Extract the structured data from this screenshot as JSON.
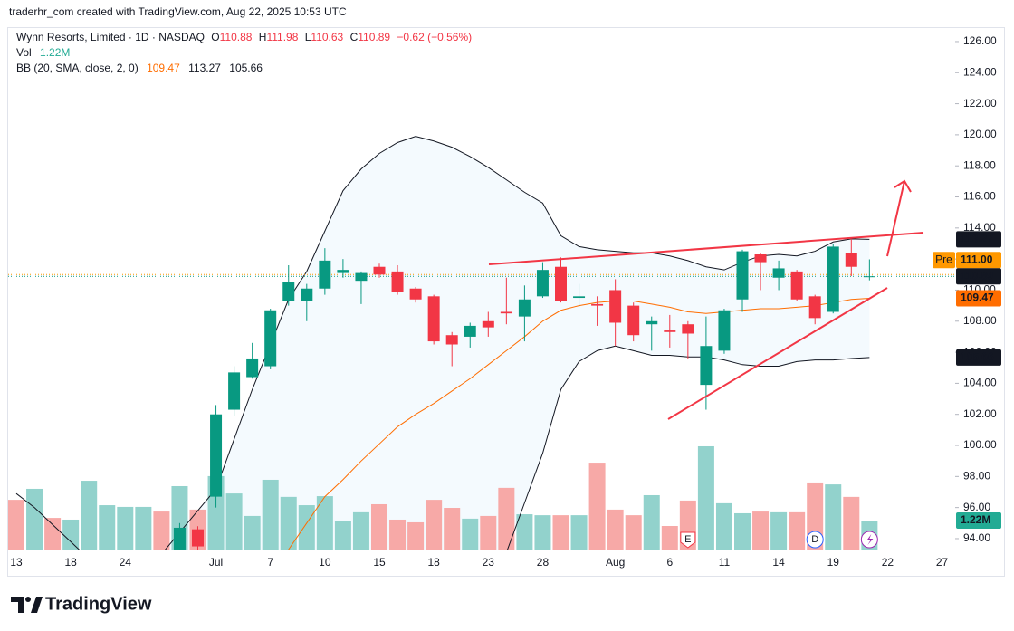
{
  "header": {
    "credit": "traderhr_com created with TradingView.com, Aug 22, 2025 10:53 UTC",
    "symbol": "Wynn Resorts, Limited · 1D · NASDAQ",
    "ohlc_labels": [
      "O",
      "H",
      "L",
      "C"
    ],
    "change": "−0.62 (−0.56%)",
    "volume_label": "Vol",
    "indicator": "BB (20, SMA, close, 2, 0)",
    "brand": "TradingView"
  },
  "chart_data": {
    "type": "candlestick",
    "categories": [
      "13",
      null,
      null,
      "18",
      null,
      null,
      "24",
      null,
      null,
      null,
      null,
      "Jul",
      null,
      null,
      "7",
      null,
      null,
      "10",
      null,
      null,
      "15",
      null,
      null,
      "18",
      null,
      null,
      "23",
      null,
      null,
      "28",
      null,
      null,
      null,
      "Aug",
      null,
      null,
      "6",
      null,
      null,
      "11",
      null,
      null,
      "14",
      null,
      null,
      "19",
      null,
      null,
      "22",
      null,
      null,
      "27"
    ],
    "open": [
      null,
      null,
      null,
      null,
      null,
      null,
      null,
      null,
      null,
      93.3,
      94.6,
      96.7,
      102.3,
      104.4,
      105.1,
      109.3,
      109.3,
      110.1,
      111.1,
      110.6,
      111.5,
      111.2,
      110.1,
      109.6,
      107.1,
      107.0,
      108.0,
      108.6,
      108.3,
      109.6,
      111.5,
      109.5,
      109.1,
      110.0,
      109.0,
      107.8,
      107.4,
      107.8,
      103.9,
      106.1,
      109.4,
      112.3,
      110.8,
      111.2,
      109.6,
      108.6,
      112.4,
      110.88,
      null,
      null,
      null,
      null
    ],
    "high": [
      null,
      null,
      null,
      null,
      null,
      null,
      null,
      null,
      null,
      95.0,
      94.8,
      102.6,
      105.1,
      106.6,
      108.8,
      111.6,
      110.4,
      112.7,
      112.0,
      111.2,
      111.7,
      111.6,
      110.2,
      109.7,
      107.3,
      107.9,
      108.6,
      110.8,
      110.3,
      111.8,
      112.1,
      110.4,
      109.6,
      110.7,
      109.2,
      108.3,
      108.4,
      108.0,
      108.3,
      108.8,
      112.6,
      112.4,
      111.9,
      111.3,
      109.7,
      113.0,
      113.3,
      111.98,
      null,
      null,
      null,
      null
    ],
    "low": [
      null,
      null,
      null,
      null,
      null,
      null,
      null,
      null,
      null,
      93.0,
      93.3,
      96.0,
      101.9,
      104.3,
      104.9,
      109.0,
      108.0,
      109.7,
      110.8,
      109.1,
      110.8,
      109.7,
      109.2,
      106.5,
      105.1,
      106.3,
      107.0,
      107.8,
      106.7,
      109.5,
      109.2,
      108.9,
      107.7,
      106.4,
      106.7,
      106.1,
      106.3,
      105.6,
      102.3,
      105.9,
      108.6,
      110.0,
      110.0,
      109.3,
      107.8,
      108.5,
      110.9,
      110.63,
      null,
      null,
      null,
      null
    ],
    "close": [
      null,
      null,
      null,
      null,
      null,
      null,
      null,
      null,
      null,
      94.7,
      93.5,
      102.0,
      104.7,
      105.6,
      108.7,
      110.5,
      110.1,
      111.9,
      111.3,
      111.1,
      111.0,
      109.9,
      109.4,
      106.7,
      106.5,
      107.7,
      107.6,
      108.5,
      109.4,
      111.3,
      109.3,
      109.6,
      109.0,
      107.9,
      107.1,
      108.0,
      107.3,
      107.2,
      106.4,
      108.7,
      112.5,
      111.8,
      111.4,
      109.4,
      108.2,
      112.8,
      111.5,
      110.89,
      null,
      null,
      null,
      null
    ],
    "up_color": "#089981",
    "down_color": "#f23645",
    "volume": {
      "values": [
        2.07,
        2.52,
        1.33,
        1.26,
        2.85,
        1.85,
        1.78,
        1.78,
        1.59,
        2.63,
        1.67,
        3.04,
        2.33,
        1.41,
        2.89,
        2.19,
        1.85,
        2.22,
        1.22,
        1.56,
        1.89,
        1.26,
        1.15,
        2.07,
        1.74,
        1.3,
        1.41,
        2.56,
        1.48,
        1.44,
        1.44,
        1.44,
        3.59,
        1.67,
        1.44,
        2.26,
        1.0,
        2.04,
        4.26,
        1.93,
        1.52,
        1.59,
        1.56,
        1.56,
        2.78,
        2.7,
        2.19,
        1.22,
        null,
        null,
        null,
        null
      ],
      "value_labels": [
        null,
        null,
        null,
        null,
        null,
        null,
        null,
        null,
        null,
        null,
        null,
        null,
        null,
        null,
        null,
        null,
        null,
        null,
        null,
        null,
        null,
        null,
        null,
        null,
        null,
        null,
        null,
        null,
        null,
        null,
        null,
        null,
        null,
        null,
        null,
        null,
        null,
        null,
        null,
        null,
        null,
        null,
        null,
        null,
        null,
        null,
        null,
        "1.22M",
        null,
        null,
        null,
        null
      ],
      "colors": [
        "#f7a9a7",
        "#92d2cc",
        "#f7a9a7",
        "#92d2cc",
        "#92d2cc",
        "#92d2cc",
        "#92d2cc",
        "#92d2cc",
        "#f7a9a7",
        "#92d2cc",
        "#f7a9a7",
        "#92d2cc",
        "#92d2cc",
        "#92d2cc",
        "#92d2cc",
        "#92d2cc",
        "#92d2cc",
        "#92d2cc",
        "#92d2cc",
        "#92d2cc",
        "#f7a9a7",
        "#f7a9a7",
        "#f7a9a7",
        "#f7a9a7",
        "#f7a9a7",
        "#92d2cc",
        "#f7a9a7",
        "#f7a9a7",
        "#92d2cc",
        "#92d2cc",
        "#f7a9a7",
        "#92d2cc",
        "#f7a9a7",
        "#f7a9a7",
        "#f7a9a7",
        "#92d2cc",
        "#f7a9a7",
        "#f7a9a7",
        "#92d2cc",
        "#92d2cc",
        "#92d2cc",
        "#f7a9a7",
        "#92d2cc",
        "#f7a9a7",
        "#f7a9a7",
        "#92d2cc",
        "#f7a9a7",
        "#92d2cc",
        null,
        null,
        null,
        null
      ],
      "tag_color": "#22ab94"
    },
    "bb": {
      "basis": {
        "color": "#ff6d00",
        "values": [
          null,
          null,
          null,
          null,
          null,
          null,
          null,
          null,
          null,
          null,
          null,
          null,
          null,
          null,
          91.5,
          93.3,
          95.0,
          96.7,
          97.8,
          99.0,
          100.1,
          101.2,
          102.0,
          102.7,
          103.5,
          104.3,
          105.2,
          106.1,
          107.0,
          108.0,
          108.7,
          109.0,
          109.2,
          109.3,
          109.3,
          109.1,
          108.9,
          108.6,
          108.5,
          108.6,
          108.7,
          108.8,
          108.8,
          108.9,
          109.0,
          109.2,
          109.4,
          109.47,
          null,
          null,
          null,
          null
        ]
      },
      "upper": {
        "color": "#131722",
        "values": [
          null,
          null,
          null,
          null,
          null,
          null,
          null,
          91.6,
          93.0,
          94.4,
          95.8,
          97.2,
          100.4,
          103.6,
          106.5,
          109.4,
          111.2,
          113.8,
          116.4,
          117.8,
          118.8,
          119.5,
          119.9,
          119.6,
          119.2,
          118.6,
          117.9,
          117.1,
          116.3,
          115.6,
          113.5,
          112.8,
          112.6,
          112.5,
          112.4,
          112.4,
          112.2,
          111.9,
          111.5,
          111.3,
          111.8,
          112.2,
          112.3,
          112.2,
          112.5,
          113.1,
          113.3,
          113.27,
          null,
          null,
          null,
          null
        ]
      },
      "lower": {
        "color": "#131722",
        "values": [
          96.9,
          96.0,
          94.9,
          93.8,
          92.7,
          null,
          null,
          null,
          null,
          null,
          null,
          null,
          null,
          null,
          null,
          null,
          null,
          null,
          null,
          null,
          null,
          null,
          null,
          null,
          null,
          null,
          90.5,
          93.1,
          96.3,
          99.5,
          103.6,
          105.4,
          106.1,
          106.4,
          106.1,
          105.8,
          105.8,
          105.7,
          105.7,
          105.5,
          105.2,
          105.1,
          105.1,
          105.4,
          105.5,
          105.5,
          105.6,
          105.66,
          null,
          null,
          null,
          null
        ]
      },
      "fill": "rgba(33,150,243,0.05)"
    },
    "premarket": {
      "label": "Pre",
      "value": 111.0,
      "value_label": "111.00",
      "color": "#ff9800"
    },
    "events": [
      {
        "label": "E",
        "color": "#f23645"
      },
      {
        "label": "D",
        "color": "#2962ff"
      }
    ],
    "ylim": [
      93.24,
      126.93
    ],
    "yticks": [
      {
        "value": 94,
        "label": "94.00"
      },
      {
        "value": 96,
        "label": "96.00"
      },
      {
        "value": 98,
        "label": "98.00"
      },
      {
        "value": 100,
        "label": "100.00"
      },
      {
        "value": 102,
        "label": "102.00"
      },
      {
        "value": 104,
        "label": "104.00"
      },
      {
        "value": 106,
        "label": "106.00"
      },
      {
        "value": 108,
        "label": "108.00"
      },
      {
        "value": 110,
        "label": "110.00"
      },
      {
        "value": 112,
        "label": "112.00"
      },
      {
        "value": 114,
        "label": "114.00"
      },
      {
        "value": 116,
        "label": "116.00"
      },
      {
        "value": 118,
        "label": "118.00"
      },
      {
        "value": 120,
        "label": "120.00"
      },
      {
        "value": 122,
        "label": "122.00"
      },
      {
        "value": 124,
        "label": "124.00"
      },
      {
        "value": 126,
        "label": "126.00"
      }
    ],
    "grid": false
  }
}
